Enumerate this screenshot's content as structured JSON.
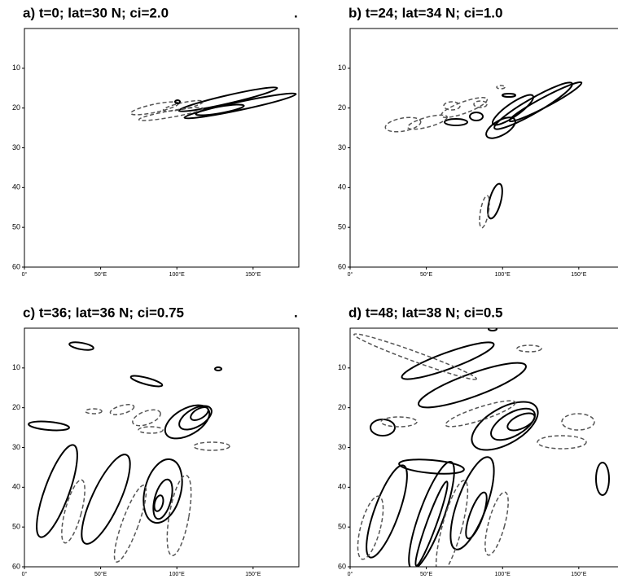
{
  "chart_data": [
    {
      "type": "contour",
      "title": "a) t=0;  lat=30 N;  ci=2.0",
      "corner_mark": ".",
      "xlim": [
        0,
        180
      ],
      "ylim": [
        0,
        60
      ],
      "xticks": [
        {
          "value": 0,
          "label": "0°"
        },
        {
          "value": 50,
          "label": "50°E"
        },
        {
          "value": 100,
          "label": "100°E"
        },
        {
          "value": 150,
          "label": "150°E"
        }
      ],
      "yticks": [
        10,
        20,
        30,
        40,
        50,
        60
      ]
    },
    {
      "type": "contour",
      "title": "b) t=24;  lat=34 N;  ci=1.0",
      "corner_mark": ".",
      "xlim": [
        0,
        180
      ],
      "ylim": [
        0,
        60
      ],
      "xticks": [
        {
          "value": 0,
          "label": "0°"
        },
        {
          "value": 50,
          "label": "50°E"
        },
        {
          "value": 100,
          "label": "100°E"
        },
        {
          "value": 150,
          "label": "150°E"
        }
      ],
      "yticks": [
        10,
        20,
        30,
        40,
        50,
        60
      ]
    },
    {
      "type": "contour",
      "title": "c) t=36;  lat=36 N;  ci=0.75",
      "corner_mark": ".",
      "xlim": [
        0,
        180
      ],
      "ylim": [
        0,
        60
      ],
      "xticks": [
        {
          "value": 0,
          "label": "0°"
        },
        {
          "value": 50,
          "label": "50°E"
        },
        {
          "value": 100,
          "label": "100°E"
        },
        {
          "value": 150,
          "label": "150°E"
        }
      ],
      "yticks": [
        10,
        20,
        30,
        40,
        50,
        60
      ]
    },
    {
      "type": "contour",
      "title": "d) t=48;  lat=38 N;  ci=0.5",
      "corner_mark": ".",
      "xlim": [
        0,
        180
      ],
      "ylim": [
        0,
        60
      ],
      "xticks": [
        {
          "value": 0,
          "label": "0°"
        },
        {
          "value": 50,
          "label": "50°E"
        },
        {
          "value": 100,
          "label": "100°E"
        },
        {
          "value": 150,
          "label": "150°E"
        }
      ],
      "yticks": [
        10,
        20,
        30,
        40,
        50,
        60
      ]
    }
  ]
}
